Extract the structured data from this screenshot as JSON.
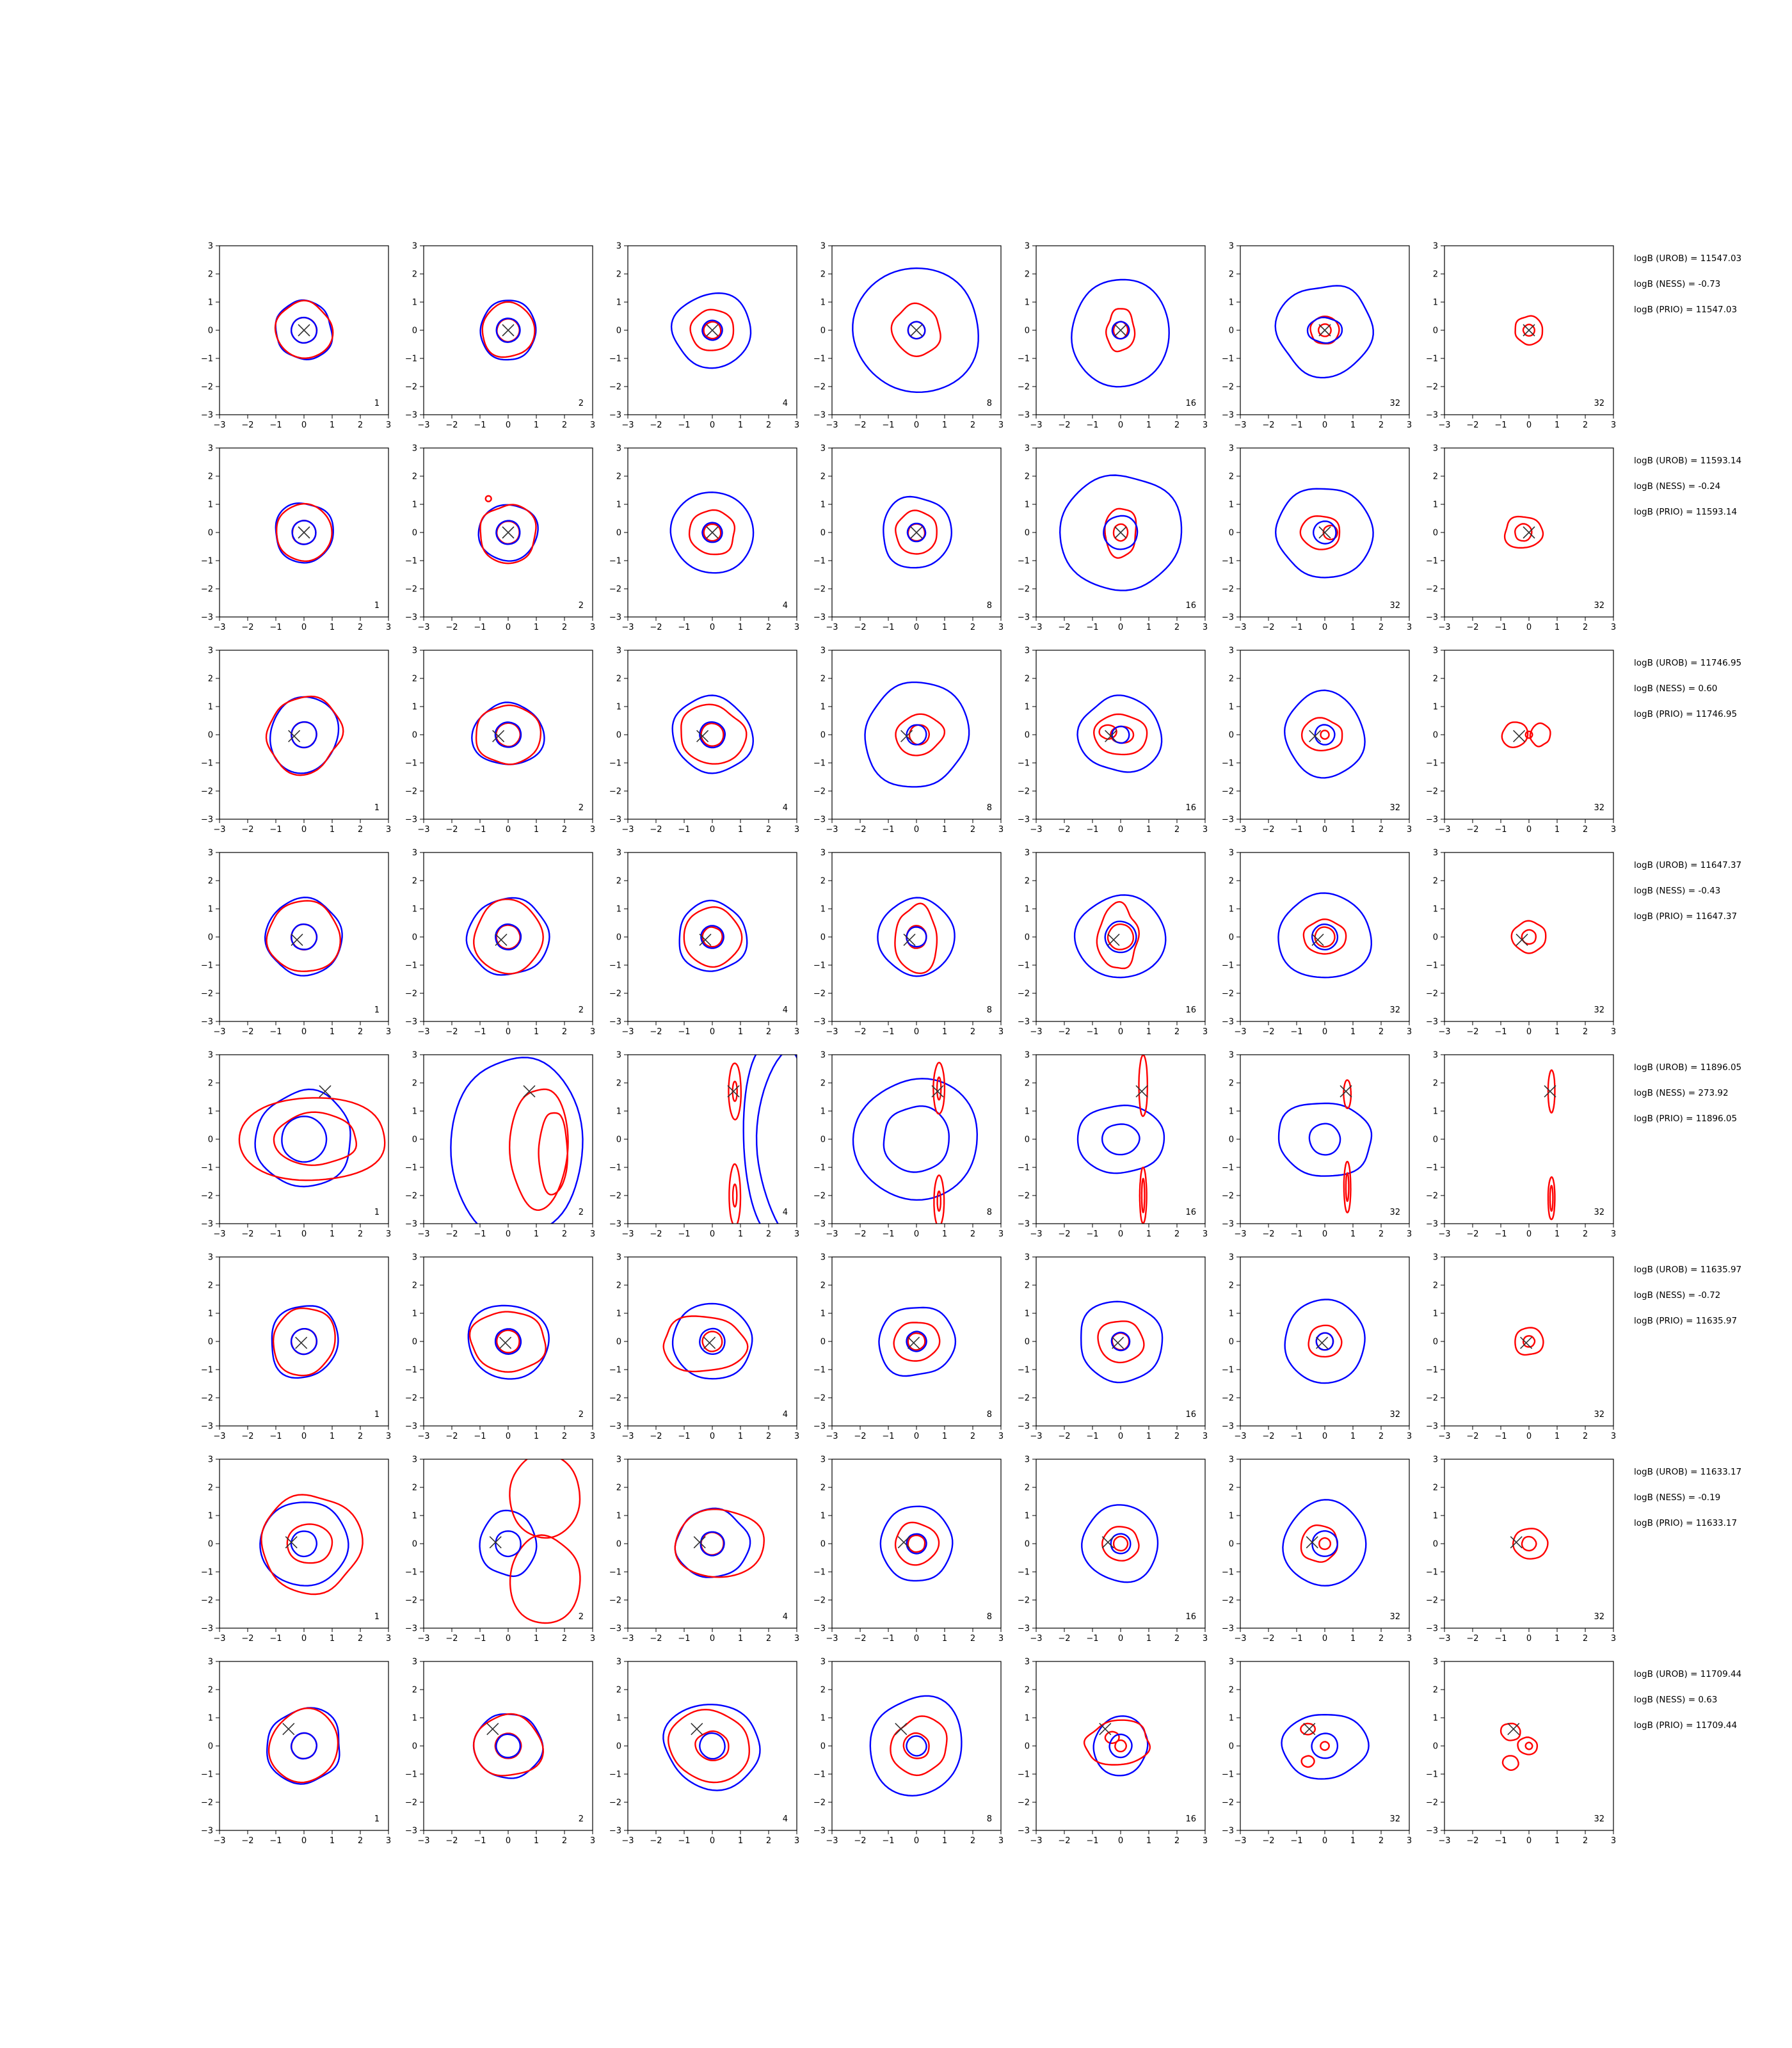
{
  "chart_data": {
    "type": "contour",
    "grid": {
      "rows": 8,
      "cols": 7
    },
    "xlim": [
      -3,
      3
    ],
    "ylim": [
      -3,
      3
    ],
    "xticks": [
      -3,
      -2,
      -1,
      0,
      1,
      2,
      3
    ],
    "yticks": [
      -3,
      -2,
      -1,
      0,
      1,
      2,
      3
    ],
    "colors": {
      "blue": "#0000ff",
      "red": "#ff0000",
      "marker": "#333333"
    },
    "panel_labels": [
      "1",
      "2",
      "4",
      "8",
      "16",
      "32",
      "32"
    ],
    "rows": [
      {
        "marker": [
          0.0,
          0.0
        ],
        "annotations": [
          "logB (UROB) = 11547.03",
          "logB (NESS) = -0.73",
          "logB (PRIO) = 11547.03"
        ]
      },
      {
        "marker": [
          0.0,
          0.0
        ],
        "annotations": [
          "logB (UROB) = 11593.14",
          "logB (NESS) = -0.24",
          "logB (PRIO) = 11593.14"
        ]
      },
      {
        "marker": [
          -0.35,
          -0.05
        ],
        "annotations": [
          "logB (UROB) = 11746.95",
          "logB (NESS) = 0.60",
          "logB (PRIO) = 11746.95"
        ]
      },
      {
        "marker": [
          -0.25,
          -0.1
        ],
        "annotations": [
          "logB (UROB) = 11647.37",
          "logB (NESS) = -0.43",
          "logB (PRIO) = 11647.37"
        ]
      },
      {
        "marker": [
          0.75,
          1.7
        ],
        "annotations": [
          "logB (UROB) = 11896.05",
          "logB (NESS) = 273.92",
          "logB (PRIO) = 11896.05"
        ]
      },
      {
        "marker": [
          -0.1,
          -0.05
        ],
        "annotations": [
          "logB (UROB) = 11635.97",
          "logB (NESS) = -0.72",
          "logB (PRIO) = 11635.97"
        ]
      },
      {
        "marker": [
          -0.45,
          0.05
        ],
        "annotations": [
          "logB (UROB) = 11633.17",
          "logB (NESS) = -0.19",
          "logB (PRIO) = 11633.17"
        ]
      },
      {
        "marker": [
          -0.55,
          0.6
        ],
        "annotations": [
          "logB (UROB) = 11709.44",
          "logB (NESS) = 0.63",
          "logB (PRIO) = 11709.44"
        ]
      }
    ]
  }
}
